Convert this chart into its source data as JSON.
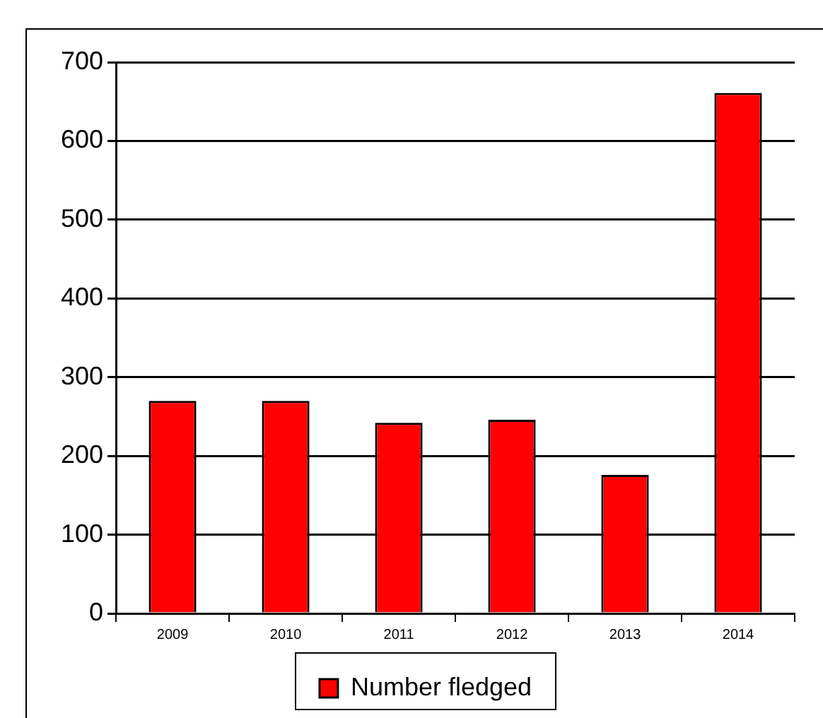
{
  "chart_data": {
    "type": "bar",
    "categories": [
      "2009",
      "2010",
      "2011",
      "2012",
      "2013",
      "2014"
    ],
    "series": [
      {
        "name": "Number fledged",
        "color": "#ff0000",
        "values": [
          270,
          270,
          242,
          246,
          176,
          661
        ]
      }
    ],
    "ylim": [
      0,
      700
    ],
    "yticks": [
      0,
      100,
      200,
      300,
      400,
      500,
      600,
      700
    ],
    "grid": "y",
    "legend": "bottom"
  }
}
